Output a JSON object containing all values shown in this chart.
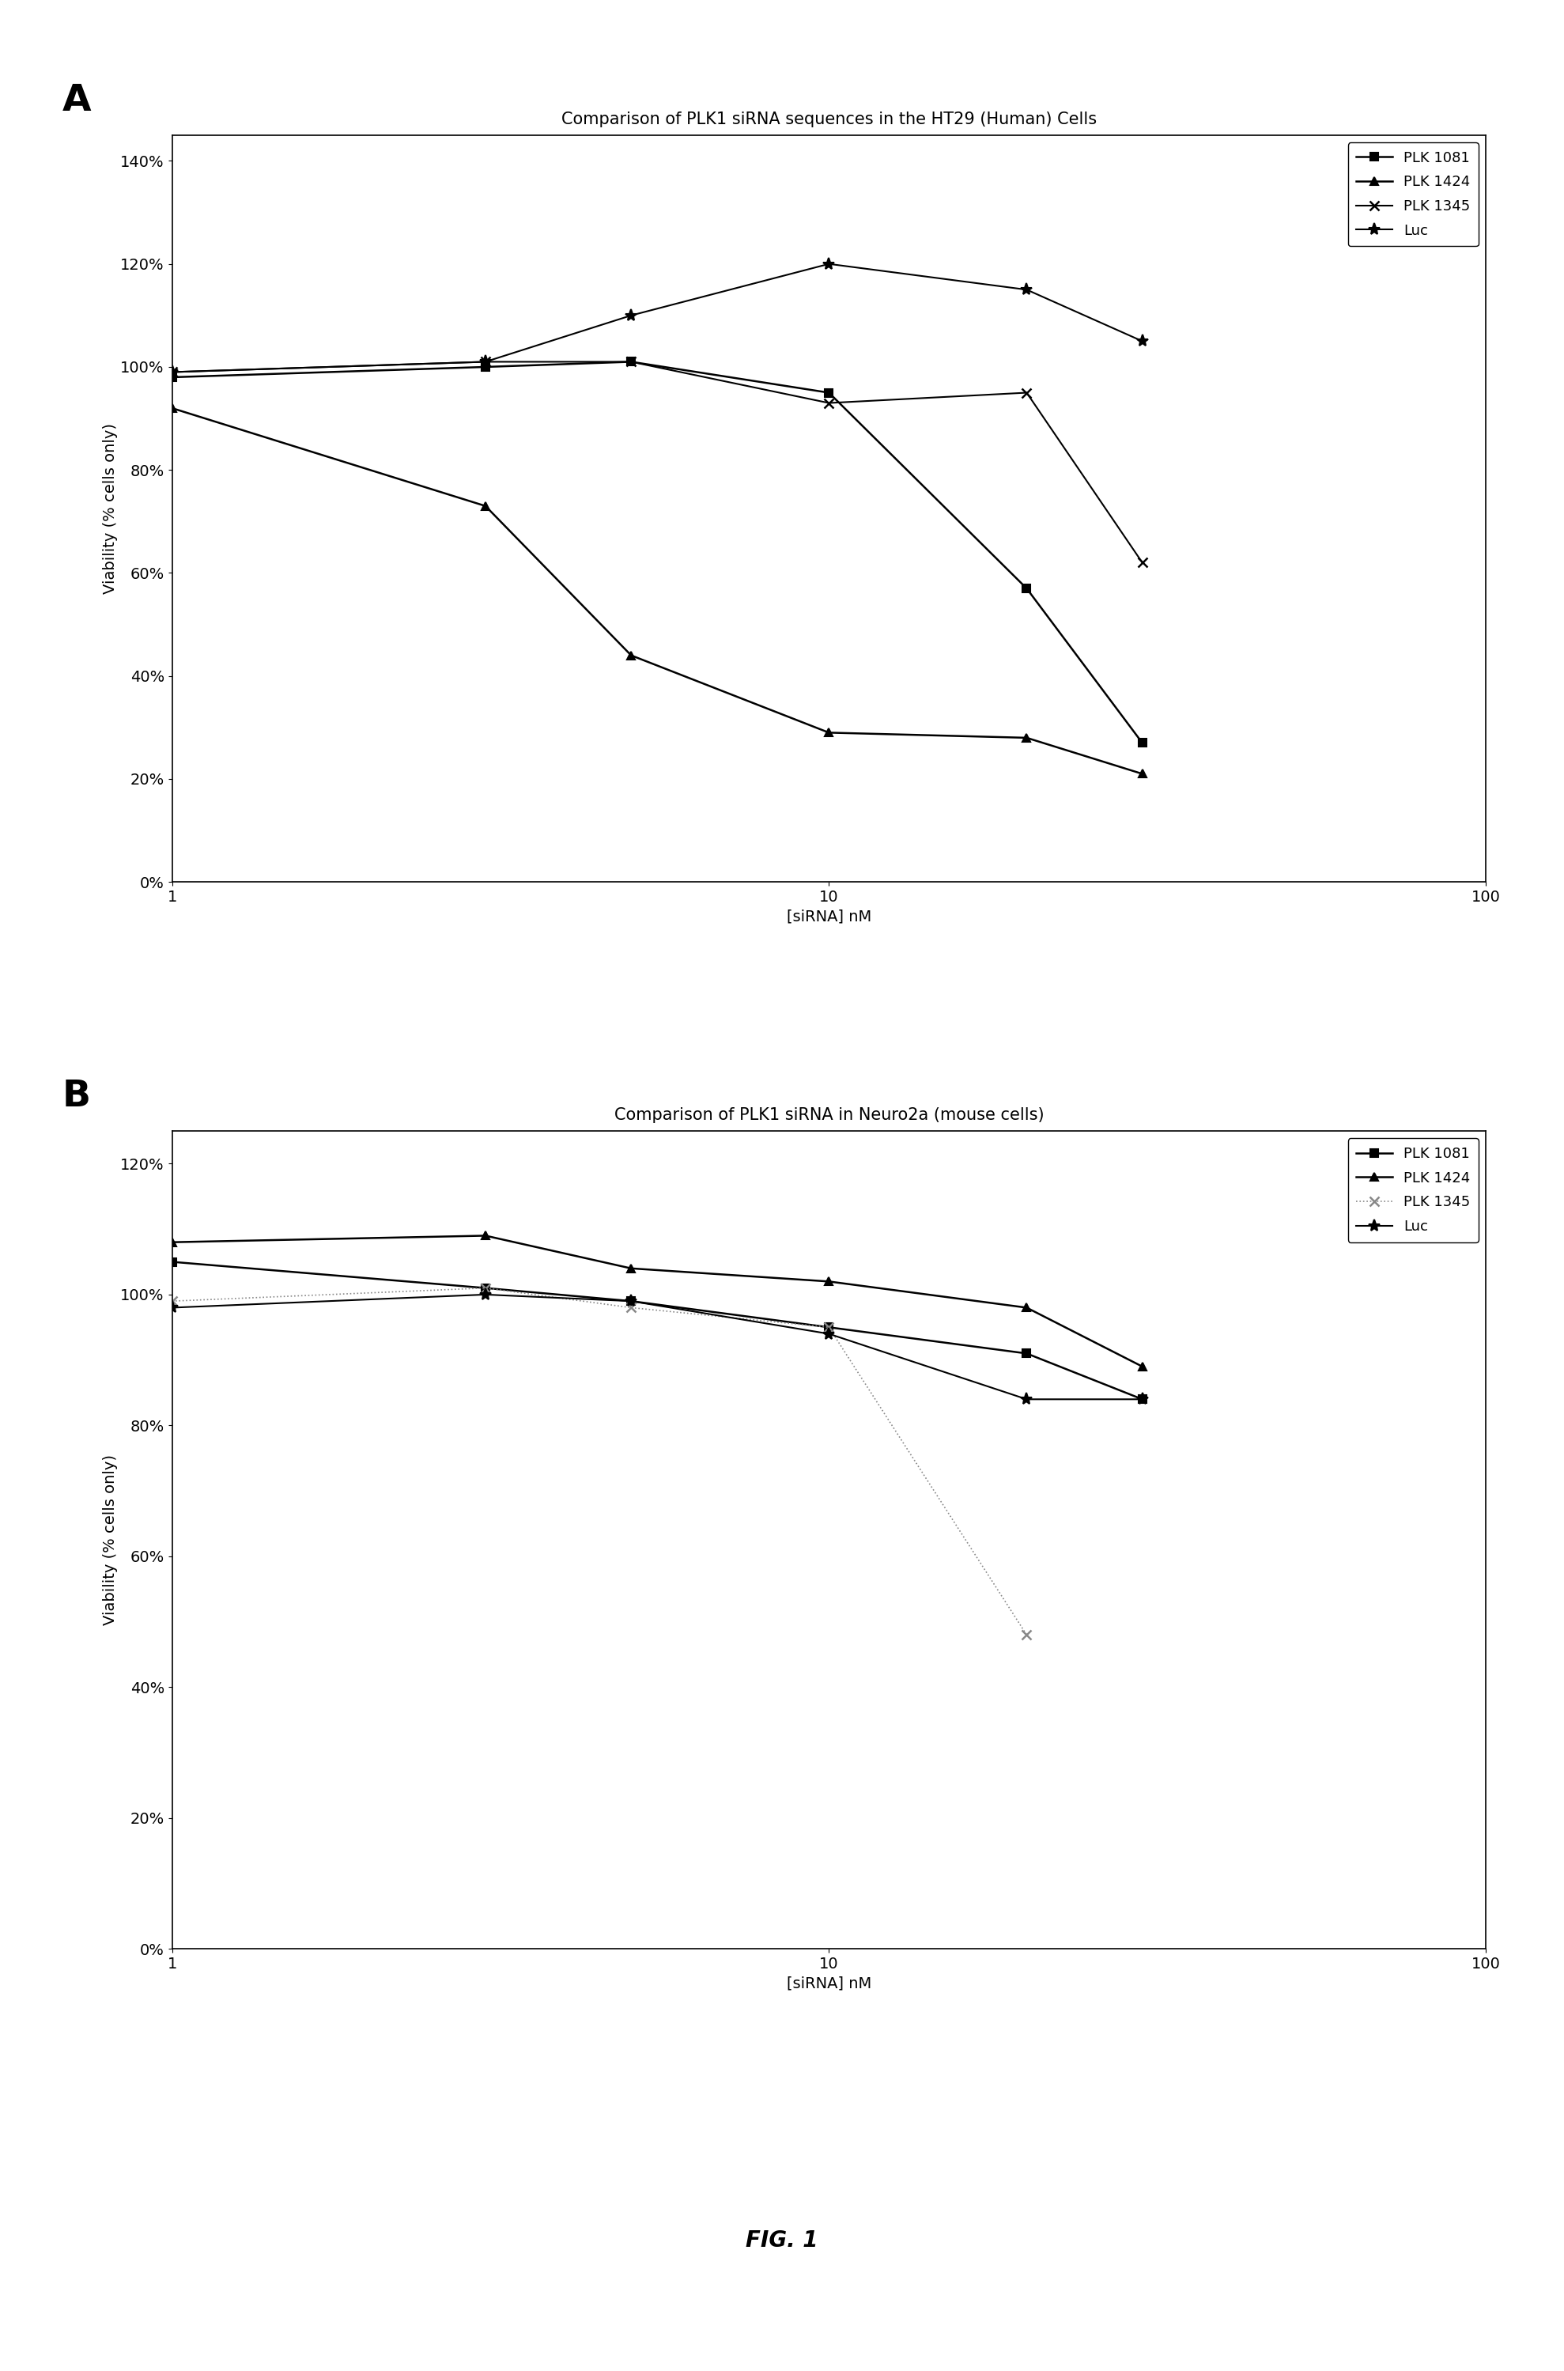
{
  "panel_A": {
    "title": "Comparison of PLK1 siRNA sequences in the HT29 (Human) Cells",
    "xlabel": "[siRNA] nM",
    "ylabel": "Viability (% cells only)",
    "xlim": [
      1,
      100
    ],
    "ylim": [
      0.0,
      1.45
    ],
    "yticks": [
      0.0,
      0.2,
      0.4,
      0.6,
      0.8,
      1.0,
      1.2,
      1.4
    ],
    "ytick_labels": [
      "0%",
      "20%",
      "40%",
      "60%",
      "80%",
      "100%",
      "120%",
      "140%"
    ],
    "series": {
      "PLK 1081": {
        "x": [
          1,
          3,
          5,
          10,
          20,
          30
        ],
        "y": [
          0.98,
          1.0,
          1.01,
          0.95,
          0.57,
          0.27
        ],
        "marker": "s",
        "linestyle": "-",
        "color": "#000000",
        "markersize": 7,
        "linewidth": 1.8
      },
      "PLK 1424": {
        "x": [
          1,
          3,
          5,
          10,
          20,
          30
        ],
        "y": [
          0.92,
          0.73,
          0.44,
          0.29,
          0.28,
          0.21
        ],
        "marker": "^",
        "linestyle": "-",
        "color": "#000000",
        "markersize": 7,
        "linewidth": 1.8
      },
      "PLK 1345": {
        "x": [
          1,
          3,
          5,
          10,
          20,
          30
        ],
        "y": [
          0.99,
          1.01,
          1.01,
          0.93,
          0.95,
          0.62
        ],
        "marker": "x",
        "linestyle": "-",
        "color": "#000000",
        "markersize": 8,
        "linewidth": 1.5
      },
      "Luc": {
        "x": [
          1,
          3,
          5,
          10,
          20,
          30
        ],
        "y": [
          0.99,
          1.01,
          1.1,
          1.2,
          1.15,
          1.05
        ],
        "marker": "*",
        "linestyle": "-",
        "color": "#000000",
        "markersize": 11,
        "linewidth": 1.5
      }
    }
  },
  "panel_B": {
    "title": "Comparison of PLK1 siRNA in Neuro2a (mouse cells)",
    "xlabel": "[siRNA] nM",
    "ylabel": "Viability (% cells only)",
    "xlim": [
      1,
      100
    ],
    "ylim": [
      0.0,
      1.25
    ],
    "yticks": [
      0.0,
      0.2,
      0.4,
      0.6,
      0.8,
      1.0,
      1.2
    ],
    "ytick_labels": [
      "0%",
      "20%",
      "40%",
      "60%",
      "80%",
      "100%",
      "120%"
    ],
    "series": {
      "PLK 1081": {
        "x": [
          1,
          3,
          5,
          10,
          20,
          30
        ],
        "y": [
          1.05,
          1.01,
          0.99,
          0.95,
          0.91,
          0.84
        ],
        "marker": "s",
        "linestyle": "-",
        "color": "#000000",
        "markersize": 7,
        "linewidth": 1.8
      },
      "PLK 1424": {
        "x": [
          1,
          3,
          5,
          10,
          20,
          30
        ],
        "y": [
          1.08,
          1.09,
          1.04,
          1.02,
          0.98,
          0.89
        ],
        "marker": "^",
        "linestyle": "-",
        "color": "#000000",
        "markersize": 7,
        "linewidth": 1.8
      },
      "PLK 1345": {
        "x": [
          1,
          3,
          5,
          10,
          20
        ],
        "y": [
          0.99,
          1.01,
          0.98,
          0.95,
          0.48
        ],
        "marker": "x",
        "linestyle": ":",
        "color": "#888888",
        "markersize": 8,
        "linewidth": 1.2
      },
      "Luc": {
        "x": [
          1,
          3,
          5,
          10,
          20,
          30
        ],
        "y": [
          0.98,
          1.0,
          0.99,
          0.94,
          0.84,
          0.84
        ],
        "marker": "*",
        "linestyle": "-",
        "color": "#000000",
        "markersize": 11,
        "linewidth": 1.5
      }
    }
  },
  "fig_label": "FIG. 1",
  "background_color": "#ffffff",
  "label_A": "A",
  "label_B": "B"
}
